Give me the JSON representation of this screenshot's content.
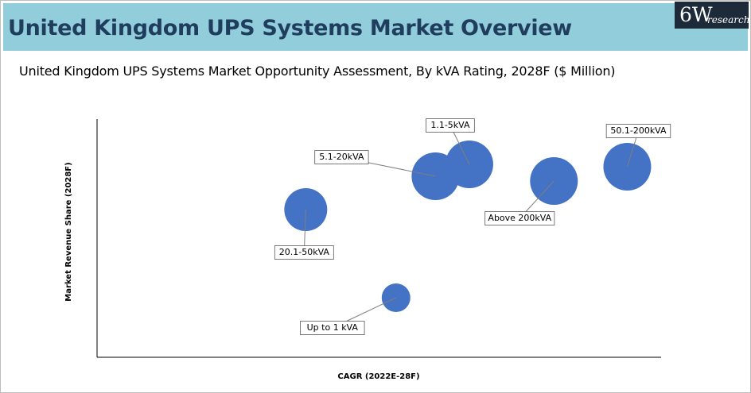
{
  "header": {
    "title": "United Kingdom UPS Systems Market Overview",
    "logo_main": "6W",
    "logo_sub": "research"
  },
  "colors": {
    "banner": "#92cddc",
    "bubble": "#4472c4",
    "title_text": "#1f3d5c"
  },
  "chart_data": {
    "type": "scatter",
    "title": "United Kingdom UPS Systems Market Opportunity Assessment, By kVA Rating, 2028F ($ Million)",
    "xlabel": "CAGR (2022E-28F)",
    "ylabel": "Market Revenue Share (2028F)",
    "grid": false,
    "axis_ticks": false,
    "xlim": [
      0,
      100
    ],
    "ylim": [
      0,
      100
    ],
    "points": [
      {
        "label": "Up to 1 kVA",
        "x": 53,
        "y": 25,
        "size": 0.6,
        "label_side": "bottom-left"
      },
      {
        "label": "20.1-50kVA",
        "x": 37,
        "y": 62,
        "size": 0.9,
        "label_side": "bottom"
      },
      {
        "label": "5.1-20kVA",
        "x": 60,
        "y": 76,
        "size": 1.0,
        "label_side": "left"
      },
      {
        "label": "1.1-5kVA",
        "x": 66,
        "y": 81,
        "size": 1.0,
        "label_side": "top"
      },
      {
        "label": "Above 200kVA",
        "x": 81,
        "y": 74,
        "size": 1.0,
        "label_side": "bottom"
      },
      {
        "label": "50.1-200kVA",
        "x": 94,
        "y": 80,
        "size": 1.0,
        "label_side": "top"
      }
    ]
  }
}
